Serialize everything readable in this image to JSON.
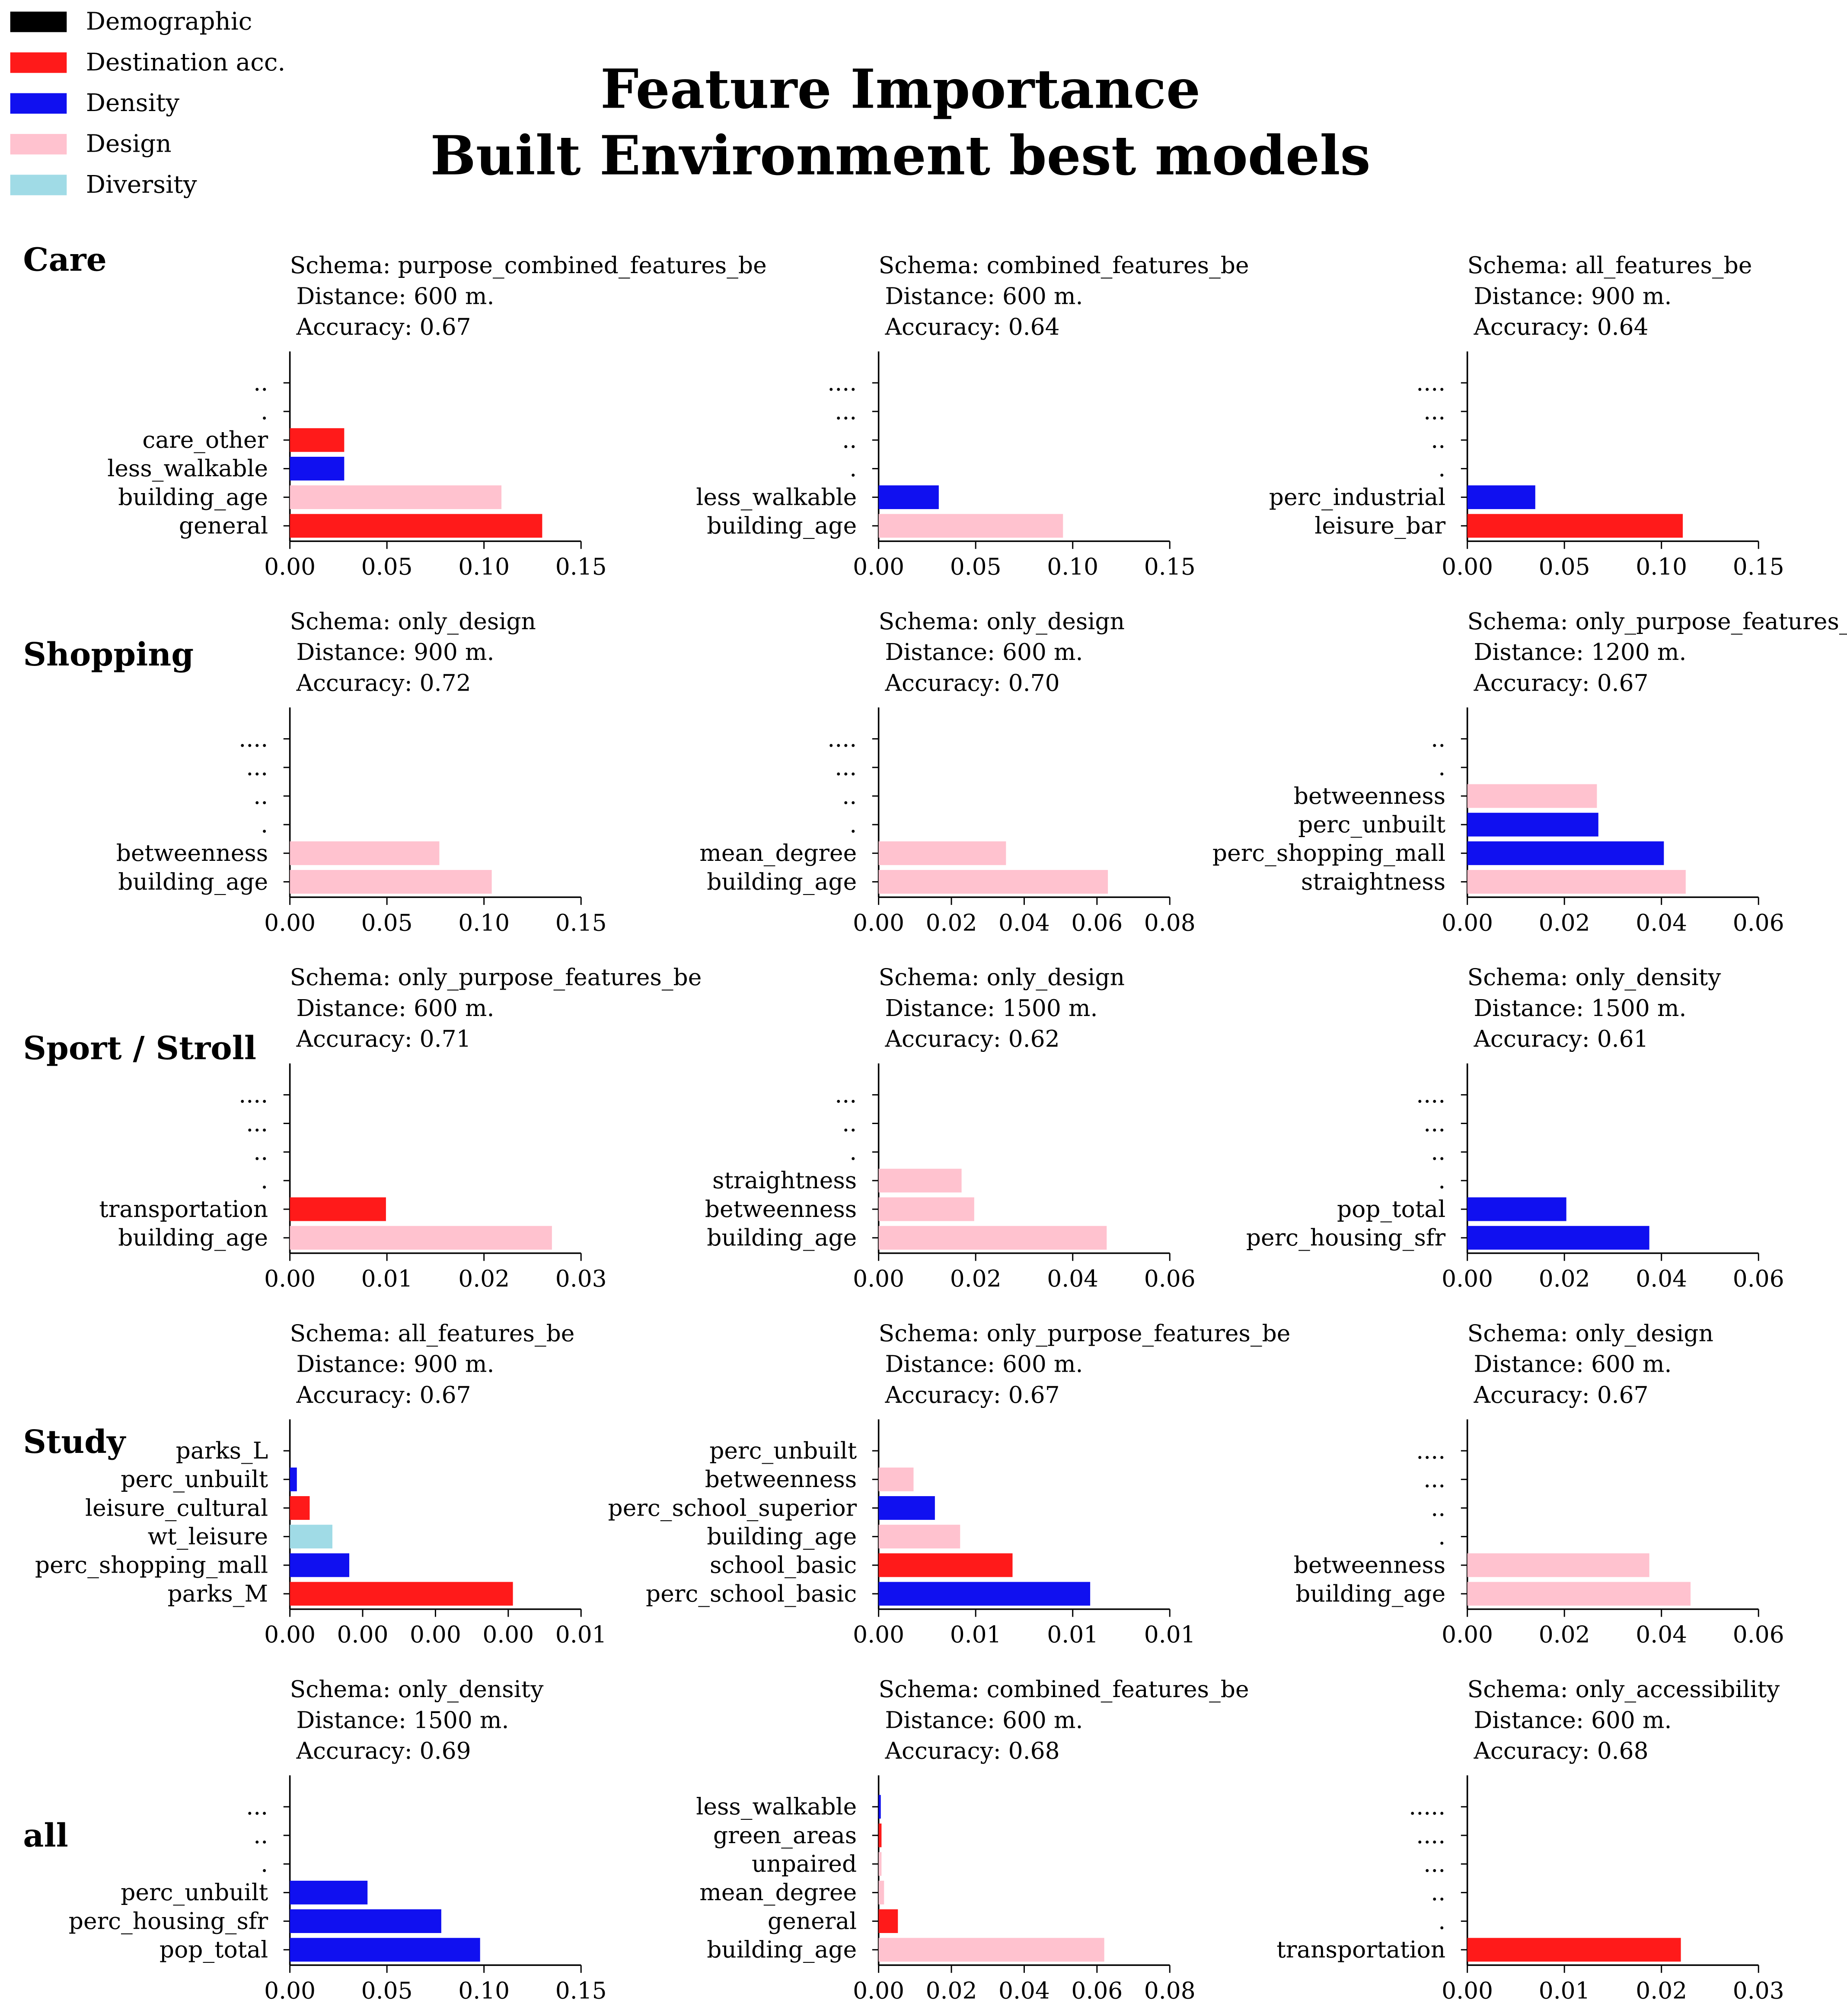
{
  "figure": {
    "title_line1": "Feature Importance",
    "title_line2": "Built Environment best models",
    "legend": [
      {
        "label": "Demographic",
        "color": "#000000"
      },
      {
        "label": "Destination acc.",
        "color": "#ff1a1a"
      },
      {
        "label": "Density",
        "color": "#1010f0"
      },
      {
        "label": "Design",
        "color": "#ffc2cf"
      },
      {
        "label": "Diversity",
        "color": "#a0dbe6"
      }
    ],
    "row_labels": [
      "Care",
      "Shopping",
      "Sport / Stroll",
      "Study",
      "all"
    ]
  },
  "colors": {
    "Demographic": "#000000",
    "Destination acc.": "#ff1a1a",
    "Density": "#1010f0",
    "Design": "#ffc2cf",
    "Diversity": "#a0dbe6"
  },
  "chart_data": [
    {
      "type": "bar",
      "orientation": "horizontal",
      "schema": "Schema: purpose_combined_features_be",
      "distance": "Distance: 600 m.",
      "accuracy": "Accuracy: 0.67",
      "categories": [
        "general",
        "building_age",
        "less_walkable",
        "care_other",
        ".",
        ".."
      ],
      "values": [
        0.13,
        0.109,
        0.028,
        0.028,
        0,
        0
      ],
      "groups": [
        "Destination acc.",
        "Design",
        "Density",
        "Destination acc.",
        null,
        null
      ],
      "xlim": [
        0,
        0.15
      ],
      "xticks": [
        "0.00",
        "0.05",
        "0.10",
        "0.15"
      ]
    },
    {
      "type": "bar",
      "orientation": "horizontal",
      "schema": "Schema: combined_features_be",
      "distance": "Distance: 600 m.",
      "accuracy": "Accuracy: 0.64",
      "categories": [
        "building_age",
        "less_walkable",
        ".",
        "..",
        "...",
        "...."
      ],
      "values": [
        0.095,
        0.031,
        0,
        0,
        0,
        0
      ],
      "groups": [
        "Design",
        "Density",
        null,
        null,
        null,
        null
      ],
      "xlim": [
        0,
        0.15
      ],
      "xticks": [
        "0.00",
        "0.05",
        "0.10",
        "0.15"
      ]
    },
    {
      "type": "bar",
      "orientation": "horizontal",
      "schema": "Schema: all_features_be",
      "distance": "Distance: 900 m.",
      "accuracy": "Accuracy: 0.64",
      "categories": [
        "leisure_bar",
        "perc_industrial",
        ".",
        "..",
        "...",
        "...."
      ],
      "values": [
        0.111,
        0.035,
        0,
        0,
        0,
        0
      ],
      "groups": [
        "Destination acc.",
        "Density",
        null,
        null,
        null,
        null
      ],
      "xlim": [
        0,
        0.15
      ],
      "xticks": [
        "0.00",
        "0.05",
        "0.10",
        "0.15"
      ]
    },
    {
      "type": "bar",
      "orientation": "horizontal",
      "schema": "Schema: only_design",
      "distance": "Distance: 900 m.",
      "accuracy": "Accuracy: 0.72",
      "categories": [
        "building_age",
        "betweenness",
        ".",
        "..",
        "...",
        "...."
      ],
      "values": [
        0.104,
        0.077,
        0,
        0,
        0,
        0
      ],
      "groups": [
        "Design",
        "Design",
        null,
        null,
        null,
        null
      ],
      "xlim": [
        0,
        0.15
      ],
      "xticks": [
        "0.00",
        "0.05",
        "0.10",
        "0.15"
      ]
    },
    {
      "type": "bar",
      "orientation": "horizontal",
      "schema": "Schema: only_design",
      "distance": "Distance: 600 m.",
      "accuracy": "Accuracy: 0.70",
      "categories": [
        "building_age",
        "mean_degree",
        ".",
        "..",
        "...",
        "...."
      ],
      "values": [
        0.063,
        0.035,
        0,
        0,
        0,
        0
      ],
      "groups": [
        "Design",
        "Design",
        null,
        null,
        null,
        null
      ],
      "xlim": [
        0,
        0.08
      ],
      "xticks": [
        "0.00",
        "0.02",
        "0.04",
        "0.06",
        "0.08"
      ]
    },
    {
      "type": "bar",
      "orientation": "horizontal",
      "schema": "Schema: only_purpose_features_be",
      "distance": "Distance: 1200 m.",
      "accuracy": "Accuracy: 0.67",
      "categories": [
        "straightness",
        "perc_shopping_mall",
        "perc_unbuilt",
        "betweenness",
        ".",
        ".."
      ],
      "values": [
        0.045,
        0.0405,
        0.027,
        0.0267,
        0,
        0
      ],
      "groups": [
        "Design",
        "Density",
        "Density",
        "Design",
        null,
        null
      ],
      "xlim": [
        0,
        0.06
      ],
      "xticks": [
        "0.00",
        "0.02",
        "0.04",
        "0.06"
      ]
    },
    {
      "type": "bar",
      "orientation": "horizontal",
      "schema": "Schema: only_purpose_features_be",
      "distance": "Distance: 600 m.",
      "accuracy": "Accuracy: 0.71",
      "categories": [
        "building_age",
        "transportation",
        ".",
        "..",
        "...",
        "...."
      ],
      "values": [
        0.027,
        0.0099,
        0,
        0,
        0,
        0
      ],
      "groups": [
        "Design",
        "Destination acc.",
        null,
        null,
        null,
        null
      ],
      "xlim": [
        0,
        0.03
      ],
      "xticks": [
        "0.00",
        "0.01",
        "0.02",
        "0.03"
      ]
    },
    {
      "type": "bar",
      "orientation": "horizontal",
      "schema": "Schema: only_design",
      "distance": "Distance: 1500 m.",
      "accuracy": "Accuracy: 0.62",
      "categories": [
        "building_age",
        "betweenness",
        "straightness",
        ".",
        "..",
        "..."
      ],
      "values": [
        0.047,
        0.0197,
        0.0171,
        0,
        0,
        0
      ],
      "groups": [
        "Design",
        "Design",
        "Design",
        null,
        null,
        null
      ],
      "xlim": [
        0,
        0.06
      ],
      "xticks": [
        "0.00",
        "0.02",
        "0.04",
        "0.06"
      ]
    },
    {
      "type": "bar",
      "orientation": "horizontal",
      "schema": "Schema: only_density",
      "distance": "Distance: 1500 m.",
      "accuracy": "Accuracy: 0.61",
      "categories": [
        "perc_housing_sfr",
        "pop_total",
        ".",
        "..",
        "...",
        "...."
      ],
      "values": [
        0.0375,
        0.0204,
        0,
        0,
        0,
        0
      ],
      "groups": [
        "Density",
        "Density",
        null,
        null,
        null,
        null
      ],
      "xlim": [
        0,
        0.06
      ],
      "xticks": [
        "0.00",
        "0.02",
        "0.04",
        "0.06"
      ]
    },
    {
      "type": "bar",
      "orientation": "horizontal",
      "schema": "Schema: all_features_be",
      "distance": "Distance: 900 m.",
      "accuracy": "Accuracy: 0.67",
      "categories": [
        "parks_M",
        "perc_shopping_mall",
        "wt_leisure",
        "leisure_cultural",
        "perc_unbuilt",
        "parks_L"
      ],
      "values": [
        0.00766,
        0.00204,
        0.00146,
        0.00068,
        0.00024,
        0
      ],
      "groups": [
        "Destination acc.",
        "Density",
        "Diversity",
        "Destination acc.",
        "Density",
        "Destination acc."
      ],
      "xlim": [
        0,
        0.01
      ],
      "xticks": [
        "0.00",
        "0.00",
        "0.00",
        "0.00",
        "0.01"
      ]
    },
    {
      "type": "bar",
      "orientation": "horizontal",
      "schema": "Schema: only_purpose_features_be",
      "distance": "Distance: 600 m.",
      "accuracy": "Accuracy: 0.67",
      "categories": [
        "perc_school_basic",
        "school_basic",
        "building_age",
        "perc_school_superior",
        "betweenness",
        "perc_unbuilt"
      ],
      "values": [
        0.0109,
        0.0069,
        0.0042,
        0.0029,
        0.0018,
        0
      ],
      "groups": [
        "Density",
        "Destination acc.",
        "Design",
        "Density",
        "Design",
        "Density"
      ],
      "xlim": [
        0,
        0.015
      ],
      "xticks": [
        "0.00",
        "0.01",
        "0.01",
        "0.01"
      ]
    },
    {
      "type": "bar",
      "orientation": "horizontal",
      "schema": "Schema: only_design",
      "distance": "Distance: 600 m.",
      "accuracy": "Accuracy: 0.67",
      "categories": [
        "building_age",
        "betweenness",
        ".",
        "..",
        "...",
        "...."
      ],
      "values": [
        0.046,
        0.0375,
        0,
        0,
        0,
        0
      ],
      "groups": [
        "Design",
        "Design",
        null,
        null,
        null,
        null
      ],
      "xlim": [
        0,
        0.06
      ],
      "xticks": [
        "0.00",
        "0.02",
        "0.04",
        "0.06"
      ]
    },
    {
      "type": "bar",
      "orientation": "horizontal",
      "schema": "Schema: only_density",
      "distance": "Distance: 1500 m.",
      "accuracy": "Accuracy: 0.69",
      "categories": [
        "pop_total",
        "perc_housing_sfr",
        "perc_unbuilt",
        ".",
        "..",
        "..."
      ],
      "values": [
        0.098,
        0.078,
        0.04,
        0,
        0,
        0
      ],
      "groups": [
        "Density",
        "Density",
        "Density",
        null,
        null,
        null
      ],
      "xlim": [
        0,
        0.15
      ],
      "xticks": [
        "0.00",
        "0.05",
        "0.10",
        "0.15"
      ]
    },
    {
      "type": "bar",
      "orientation": "horizontal",
      "schema": "Schema: combined_features_be",
      "distance": "Distance: 600 m.",
      "accuracy": "Accuracy: 0.68",
      "categories": [
        "building_age",
        "general",
        "mean_degree",
        "unpaired",
        "green_areas",
        "less_walkable"
      ],
      "values": [
        0.062,
        0.0053,
        0.0015,
        0.0008,
        0.0008,
        0.0006
      ],
      "groups": [
        "Design",
        "Destination acc.",
        "Design",
        "Design",
        "Destination acc.",
        "Density"
      ],
      "xlim": [
        0,
        0.08
      ],
      "xticks": [
        "0.00",
        "0.02",
        "0.04",
        "0.06",
        "0.08"
      ]
    },
    {
      "type": "bar",
      "orientation": "horizontal",
      "schema": "Schema: only_accessibility",
      "distance": "Distance: 600 m.",
      "accuracy": "Accuracy: 0.68",
      "categories": [
        "transportation",
        ".",
        "..",
        "...",
        "....",
        "....."
      ],
      "values": [
        0.022,
        0,
        0,
        0,
        0,
        0
      ],
      "groups": [
        "Destination acc.",
        null,
        null,
        null,
        null,
        null
      ],
      "xlim": [
        0,
        0.03
      ],
      "xticks": [
        "0.00",
        "0.01",
        "0.02",
        "0.03"
      ]
    }
  ]
}
